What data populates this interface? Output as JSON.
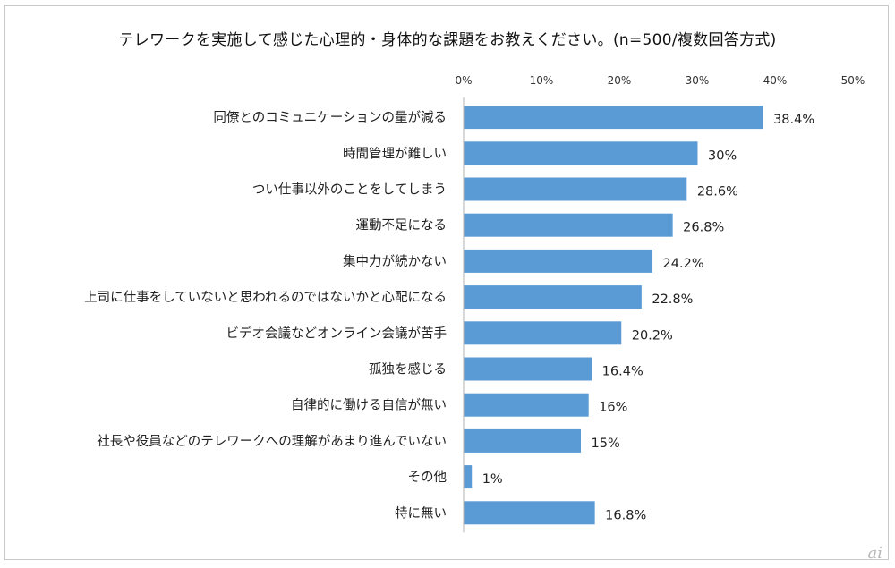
{
  "chart_data": {
    "type": "bar",
    "orientation": "horizontal",
    "title": "テレワークを実施して感じた心理的・身体的な課題をお教えください。(n=500/複数回答方式)",
    "xlabel": "",
    "ylabel": "",
    "xlim": [
      0,
      50
    ],
    "ticks": [
      "0%",
      "10%",
      "20%",
      "30%",
      "40%",
      "50%"
    ],
    "tick_values": [
      0,
      10,
      20,
      30,
      40,
      50
    ],
    "grid": false,
    "legend": "none",
    "color": "#5b9bd5",
    "categories": [
      "同僚とのコミュニケーションの量が減る",
      "時間管理が難しい",
      "つい仕事以外のことをしてしまう",
      "運動不足になる",
      "集中力が続かない",
      "上司に仕事をしていないと思われるのではないかと心配になる",
      "ビデオ会議などオンライン会議が苦手",
      "孤独を感じる",
      "自律的に働ける自信が無い",
      "社長や役員などのテレワークへの理解があまり進んでいない",
      "その他",
      "特に無い"
    ],
    "values": [
      38.4,
      30,
      28.6,
      26.8,
      24.2,
      22.8,
      20.2,
      16.4,
      16,
      15,
      1,
      16.8
    ],
    "value_labels": [
      "38.4%",
      "30%",
      "28.6%",
      "26.8%",
      "24.2%",
      "22.8%",
      "20.2%",
      "16.4%",
      "16%",
      "15%",
      "1%",
      "16.8%"
    ]
  },
  "watermark": "ai"
}
